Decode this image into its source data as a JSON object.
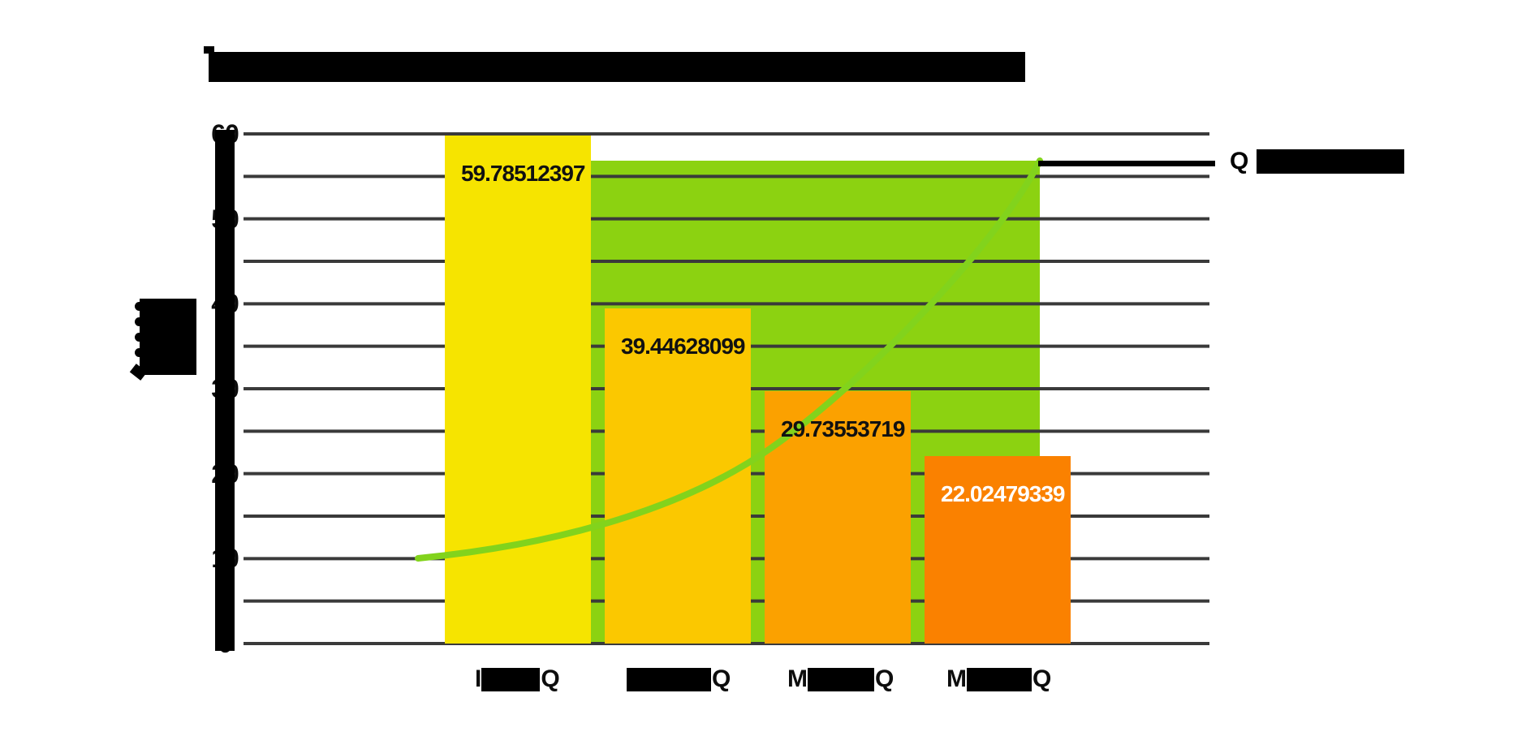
{
  "chart_data": {
    "type": "bar",
    "title": {
      "visible_fragment": "T",
      "redacted": true
    },
    "ylabel": {
      "visible_fragment": "",
      "redacted": true
    },
    "ylim": [
      0,
      60
    ],
    "y_ticks": [
      0,
      10,
      20,
      30,
      40,
      50,
      60
    ],
    "gridline_step": 5,
    "grid": true,
    "legend": {
      "position": "top-right",
      "entries": [
        {
          "marker": "line",
          "marker_color": "#000000",
          "label_visible": "Q",
          "redacted": true
        }
      ]
    },
    "categories": [
      {
        "label_prefix": "I",
        "label_suffix": "Q",
        "redacted": true
      },
      {
        "label_prefix": "",
        "label_suffix": "Q",
        "redacted": true
      },
      {
        "label_prefix": "M",
        "label_suffix": "Q",
        "redacted": true
      },
      {
        "label_prefix": "M",
        "label_suffix": "Q",
        "redacted": true
      }
    ],
    "series": [
      {
        "type": "bar",
        "values": [
          59.78512397,
          39.44628099,
          29.73553719,
          22.02479339
        ],
        "value_labels": [
          "59.78512397",
          "39.44628099",
          "29.73553719",
          "22.02479339"
        ],
        "bar_colors": [
          "#F6E400",
          "#FBC800",
          "#FBA100",
          "#FA8100"
        ],
        "value_label_colors": [
          "#111111",
          "#111111",
          "#111111",
          "#ffffff"
        ]
      },
      {
        "type": "area",
        "approx_top_value": 56.85,
        "color": "#8CD211",
        "note": "flat green band behind bars, estimated constant value"
      },
      {
        "type": "line",
        "color": "#82D31C",
        "approx_start_value": 10,
        "approx_end_value": 57,
        "shape": "smooth accelerating curve rising left-to-right"
      }
    ],
    "colors": {
      "background": "#ffffff",
      "gridline": "#3A3A3A",
      "redaction": "#000000",
      "tick_text": "#0d0d0d"
    }
  }
}
